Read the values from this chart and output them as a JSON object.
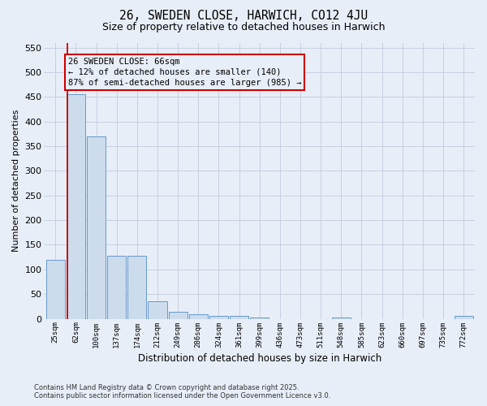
{
  "title": "26, SWEDEN CLOSE, HARWICH, CO12 4JU",
  "subtitle": "Size of property relative to detached houses in Harwich",
  "xlabel": "Distribution of detached houses by size in Harwich",
  "ylabel": "Number of detached properties",
  "footer_line1": "Contains HM Land Registry data © Crown copyright and database right 2025.",
  "footer_line2": "Contains public sector information licensed under the Open Government Licence v3.0.",
  "bins": [
    "25sqm",
    "62sqm",
    "100sqm",
    "137sqm",
    "174sqm",
    "212sqm",
    "249sqm",
    "286sqm",
    "324sqm",
    "361sqm",
    "399sqm",
    "436sqm",
    "473sqm",
    "511sqm",
    "548sqm",
    "585sqm",
    "623sqm",
    "660sqm",
    "697sqm",
    "735sqm",
    "772sqm"
  ],
  "bar_values": [
    120,
    455,
    370,
    128,
    128,
    35,
    14,
    9,
    5,
    6,
    2,
    0,
    0,
    0,
    2,
    0,
    0,
    0,
    0,
    0,
    5
  ],
  "bar_color": "#ccdcec",
  "bar_edge_color": "#6699cc",
  "grid_color": "#c8d0e0",
  "background_color": "#e8eef8",
  "annotation_text_line1": "26 SWEDEN CLOSE: 66sqm",
  "annotation_text_line2": "← 12% of detached houses are smaller (140)",
  "annotation_text_line3": "87% of semi-detached houses are larger (985) →",
  "annotation_box_color": "#cc0000",
  "red_line_x": 0.575,
  "ylim": [
    0,
    560
  ],
  "yticks": [
    0,
    50,
    100,
    150,
    200,
    250,
    300,
    350,
    400,
    450,
    500,
    550
  ],
  "title_fontsize": 10.5,
  "subtitle_fontsize": 9,
  "ylabel_fontsize": 8,
  "xlabel_fontsize": 8.5,
  "footer_fontsize": 6
}
